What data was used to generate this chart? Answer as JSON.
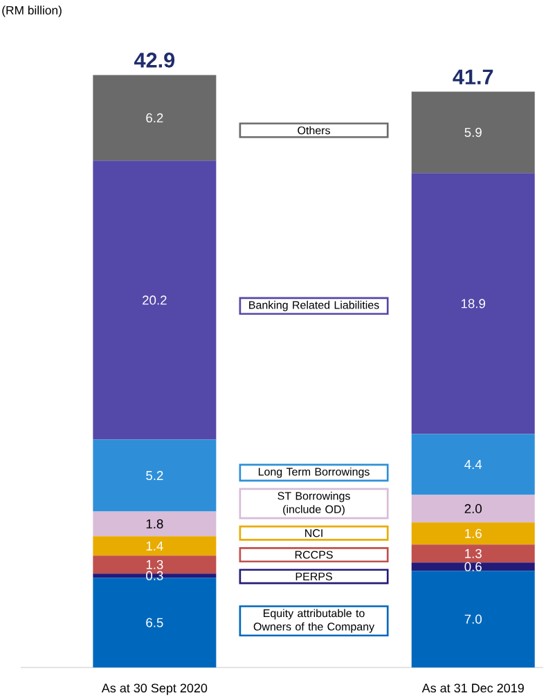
{
  "chart_data": {
    "type": "bar",
    "stacked": true,
    "ylabel": "(RM billion)",
    "categories": [
      "As at 30 Sept 2020",
      "As at 31 Dec 2019"
    ],
    "legend": "center",
    "totals": [
      "42.9",
      "41.7"
    ],
    "series": [
      {
        "name": "Equity attributable to Owners of the Company",
        "color": "#0068bc",
        "values": [
          6.5,
          7.0
        ],
        "value_labels": [
          "6.5",
          "7.0"
        ]
      },
      {
        "name": "PERPS",
        "color": "#241a78",
        "values": [
          0.3,
          0.6
        ],
        "value_labels": [
          "0.3",
          "0.6"
        ]
      },
      {
        "name": "RCCPS",
        "color": "#c0504d",
        "values": [
          1.3,
          1.3
        ],
        "value_labels": [
          "1.3",
          "1.3"
        ]
      },
      {
        "name": "NCI",
        "color": "#e8ac00",
        "values": [
          1.4,
          1.6
        ],
        "value_labels": [
          "1.4",
          "1.6"
        ]
      },
      {
        "name": "ST Borrowings (include OD)",
        "color": "#d8bcd8",
        "values": [
          1.8,
          2.0
        ],
        "value_labels": [
          "1.8",
          "2.0"
        ]
      },
      {
        "name": "Long Term Borrowings",
        "color": "#2e8fd8",
        "values": [
          5.2,
          4.4
        ],
        "value_labels": [
          "5.2",
          "4.4"
        ]
      },
      {
        "name": "Banking Related Liabilities",
        "color": "#5448a8",
        "values": [
          20.2,
          18.9
        ],
        "value_labels": [
          "20.2",
          "18.9"
        ]
      },
      {
        "name": "Others",
        "color": "#6a6a6a",
        "values": [
          6.2,
          5.9
        ],
        "value_labels": [
          "6.2",
          "5.9"
        ]
      }
    ]
  }
}
